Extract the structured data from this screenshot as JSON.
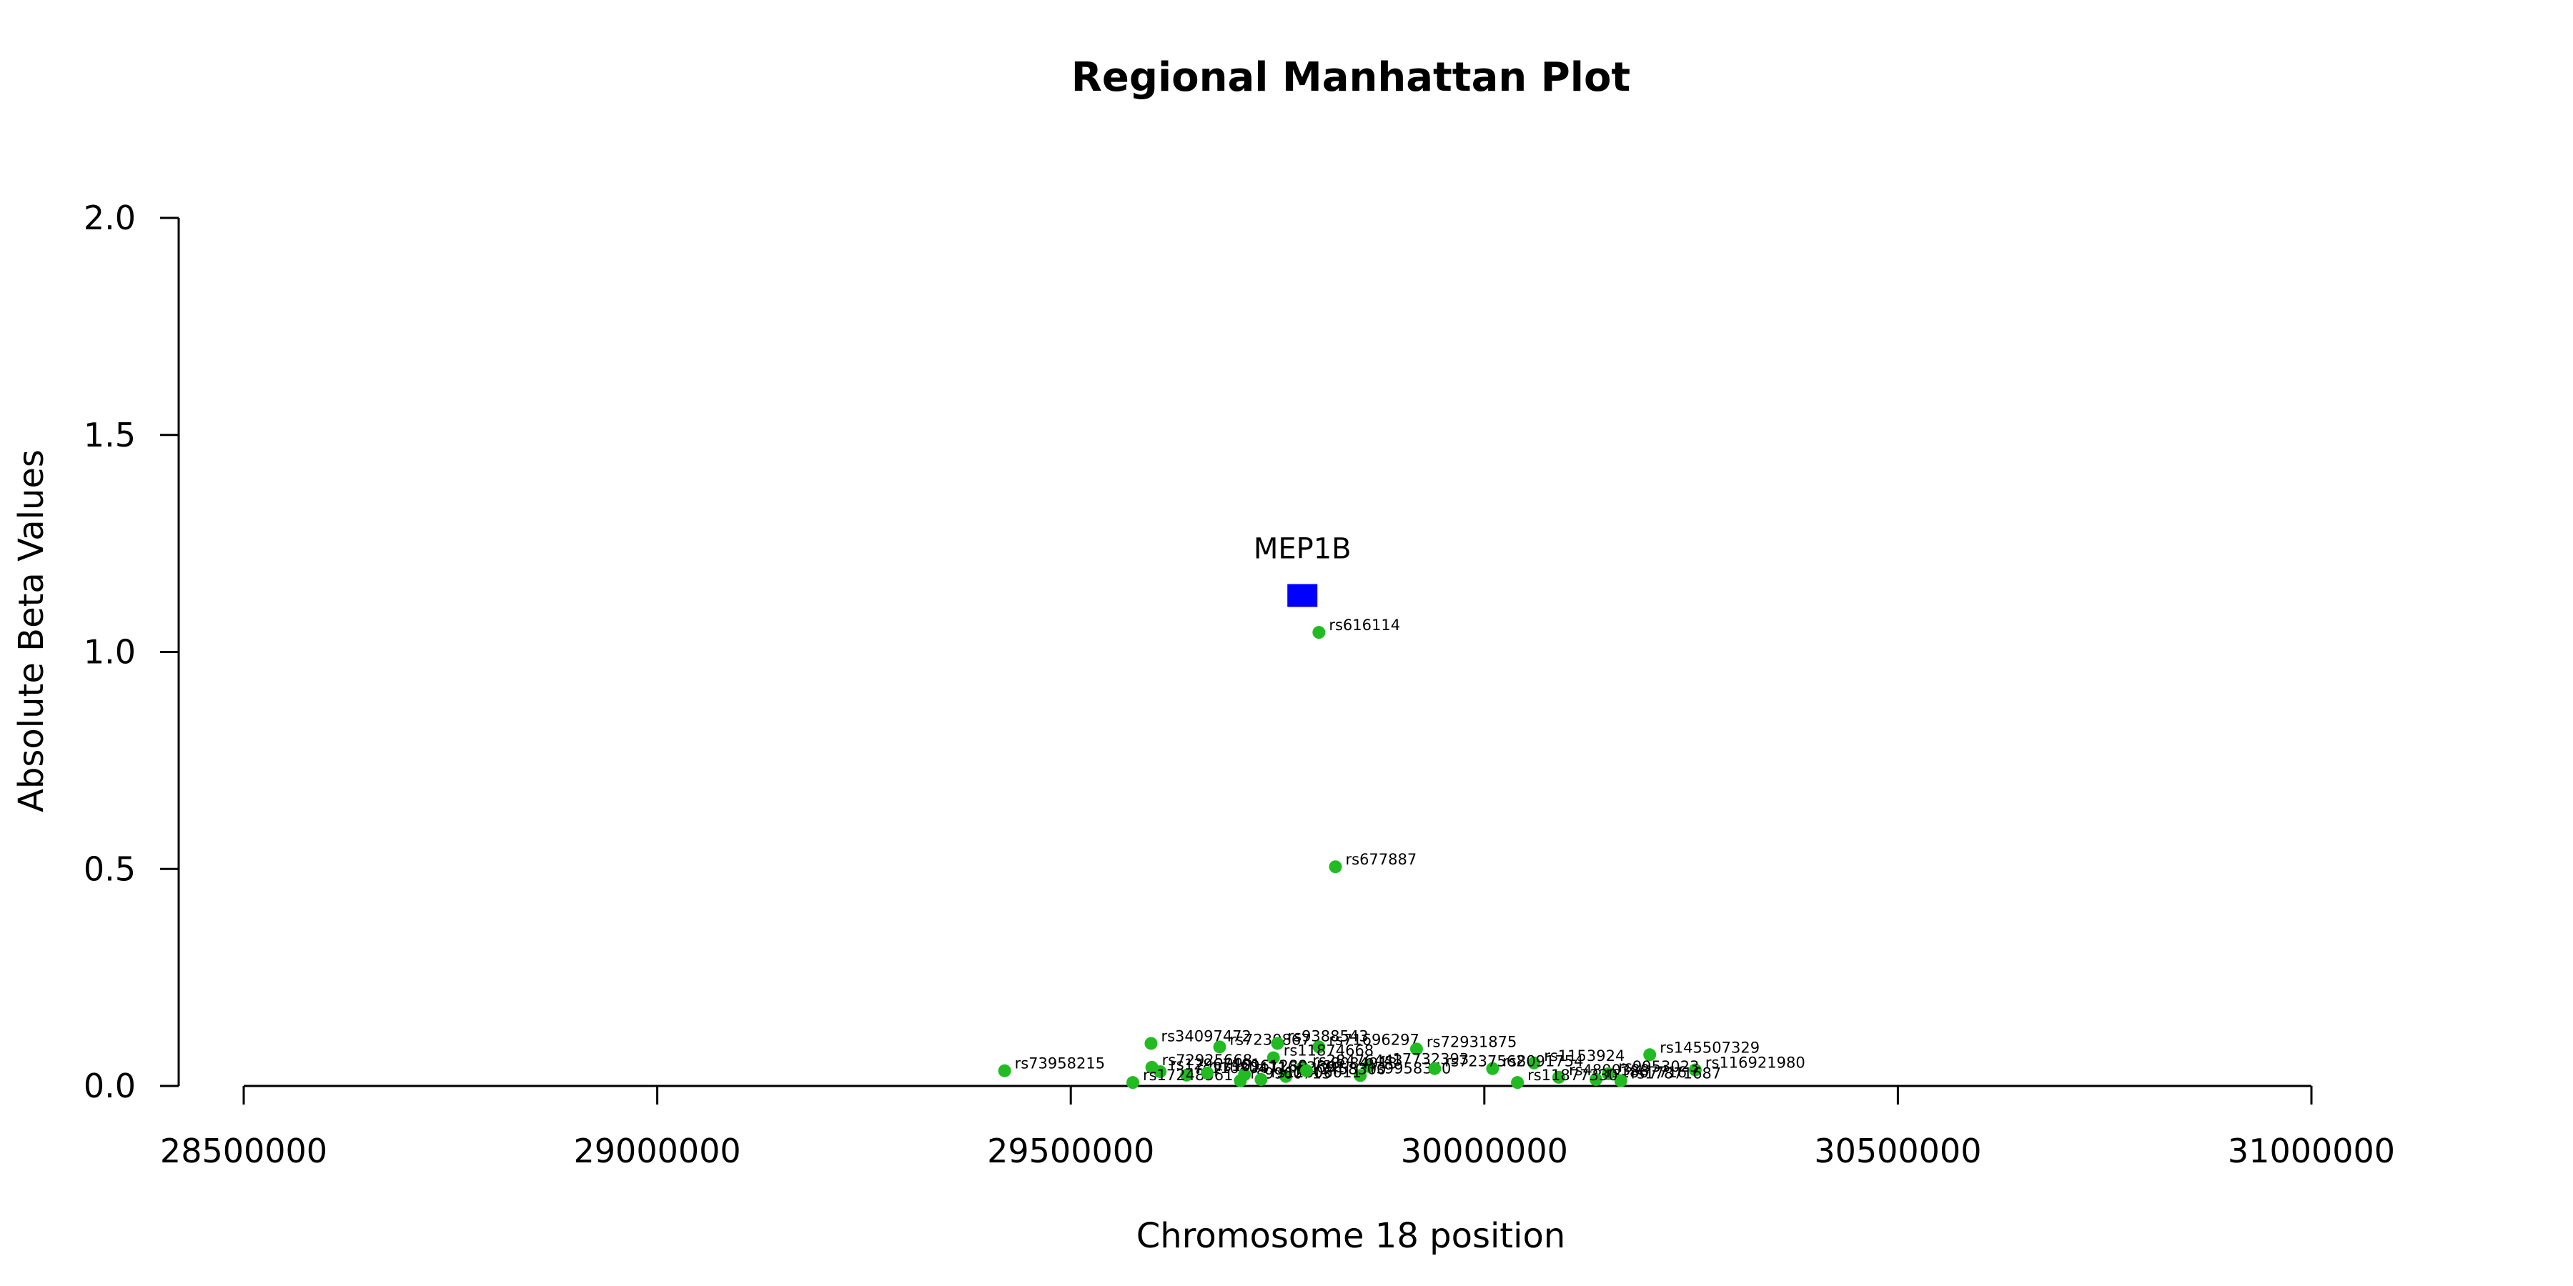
{
  "chart_data": {
    "type": "scatter",
    "title": "Regional Manhattan Plot",
    "xlabel": "Chromosome 18 position",
    "ylabel": "Absolute Beta Values",
    "xlim": [
      28500000,
      31000000
    ],
    "ylim": [
      0,
      2.0
    ],
    "x_ticks": [
      28500000,
      29000000,
      29500000,
      30000000,
      30500000,
      31000000
    ],
    "x_tick_labels": [
      "28500000",
      "29000000",
      "29500000",
      "30000000",
      "30500000",
      "31000000"
    ],
    "y_ticks": [
      0.0,
      0.5,
      1.0,
      1.5,
      2.0
    ],
    "y_tick_labels": [
      "0.0",
      "0.5",
      "1.0",
      "1.5",
      "2.0"
    ],
    "grid": false,
    "gene": {
      "name": "MEP1B",
      "x": 29780000,
      "y": 1.13,
      "color": "#0000ff",
      "marker": "square"
    },
    "snp_color": "#22bb22",
    "points": [
      {
        "label": "rs616114",
        "x": 29800000,
        "y": 1.045
      },
      {
        "label": "rs677887",
        "x": 29820000,
        "y": 0.505
      },
      {
        "label": "rs73958215",
        "x": 29420000,
        "y": 0.035
      },
      {
        "label": "rs34097472",
        "x": 29597000,
        "y": 0.098
      },
      {
        "label": "rs7230867",
        "x": 29680000,
        "y": 0.09
      },
      {
        "label": "rs9388543",
        "x": 29750000,
        "y": 0.098
      },
      {
        "label": "rs71696297",
        "x": 29800000,
        "y": 0.09
      },
      {
        "label": "rs72931875",
        "x": 29918000,
        "y": 0.085
      },
      {
        "label": "rs11874668",
        "x": 29745000,
        "y": 0.065
      },
      {
        "label": "rs145507329",
        "x": 30200000,
        "y": 0.072
      },
      {
        "label": "rs116921980",
        "x": 30255000,
        "y": 0.037
      },
      {
        "label": "rs72925668",
        "x": 29598000,
        "y": 0.043
      },
      {
        "label": "rs1153924",
        "x": 30060000,
        "y": 0.053
      },
      {
        "label": "rs8091754",
        "x": 30010000,
        "y": 0.04
      },
      {
        "label": "rs17732393",
        "x": 29860000,
        "y": 0.045
      },
      {
        "label": "rs28476443",
        "x": 29780000,
        "y": 0.042
      },
      {
        "label": "rs9958340",
        "x": 29850000,
        "y": 0.024
      },
      {
        "label": "rs11080471",
        "x": 29640000,
        "y": 0.025
      },
      {
        "label": "rs12458300",
        "x": 29760000,
        "y": 0.022
      },
      {
        "label": "rs11662691",
        "x": 29710000,
        "y": 0.026
      },
      {
        "label": "rs12967401",
        "x": 29608000,
        "y": 0.033
      },
      {
        "label": "rs17248561",
        "x": 29575000,
        "y": 0.008
      },
      {
        "label": "rs9960713",
        "x": 29705000,
        "y": 0.012
      },
      {
        "label": "rs12606011",
        "x": 29730000,
        "y": 0.015
      },
      {
        "label": "rs4800388",
        "x": 30090000,
        "y": 0.02
      },
      {
        "label": "rs9953023",
        "x": 30150000,
        "y": 0.028
      },
      {
        "label": "rs1867716",
        "x": 30135000,
        "y": 0.015
      },
      {
        "label": "rs17871687",
        "x": 30165000,
        "y": 0.012
      },
      {
        "label": "rs11877330",
        "x": 30040000,
        "y": 0.008
      },
      {
        "label": "rs7237562",
        "x": 29940000,
        "y": 0.04
      },
      {
        "label": "rs16961289",
        "x": 29665000,
        "y": 0.03
      },
      {
        "label": "rs8084913",
        "x": 29785000,
        "y": 0.035
      }
    ]
  }
}
